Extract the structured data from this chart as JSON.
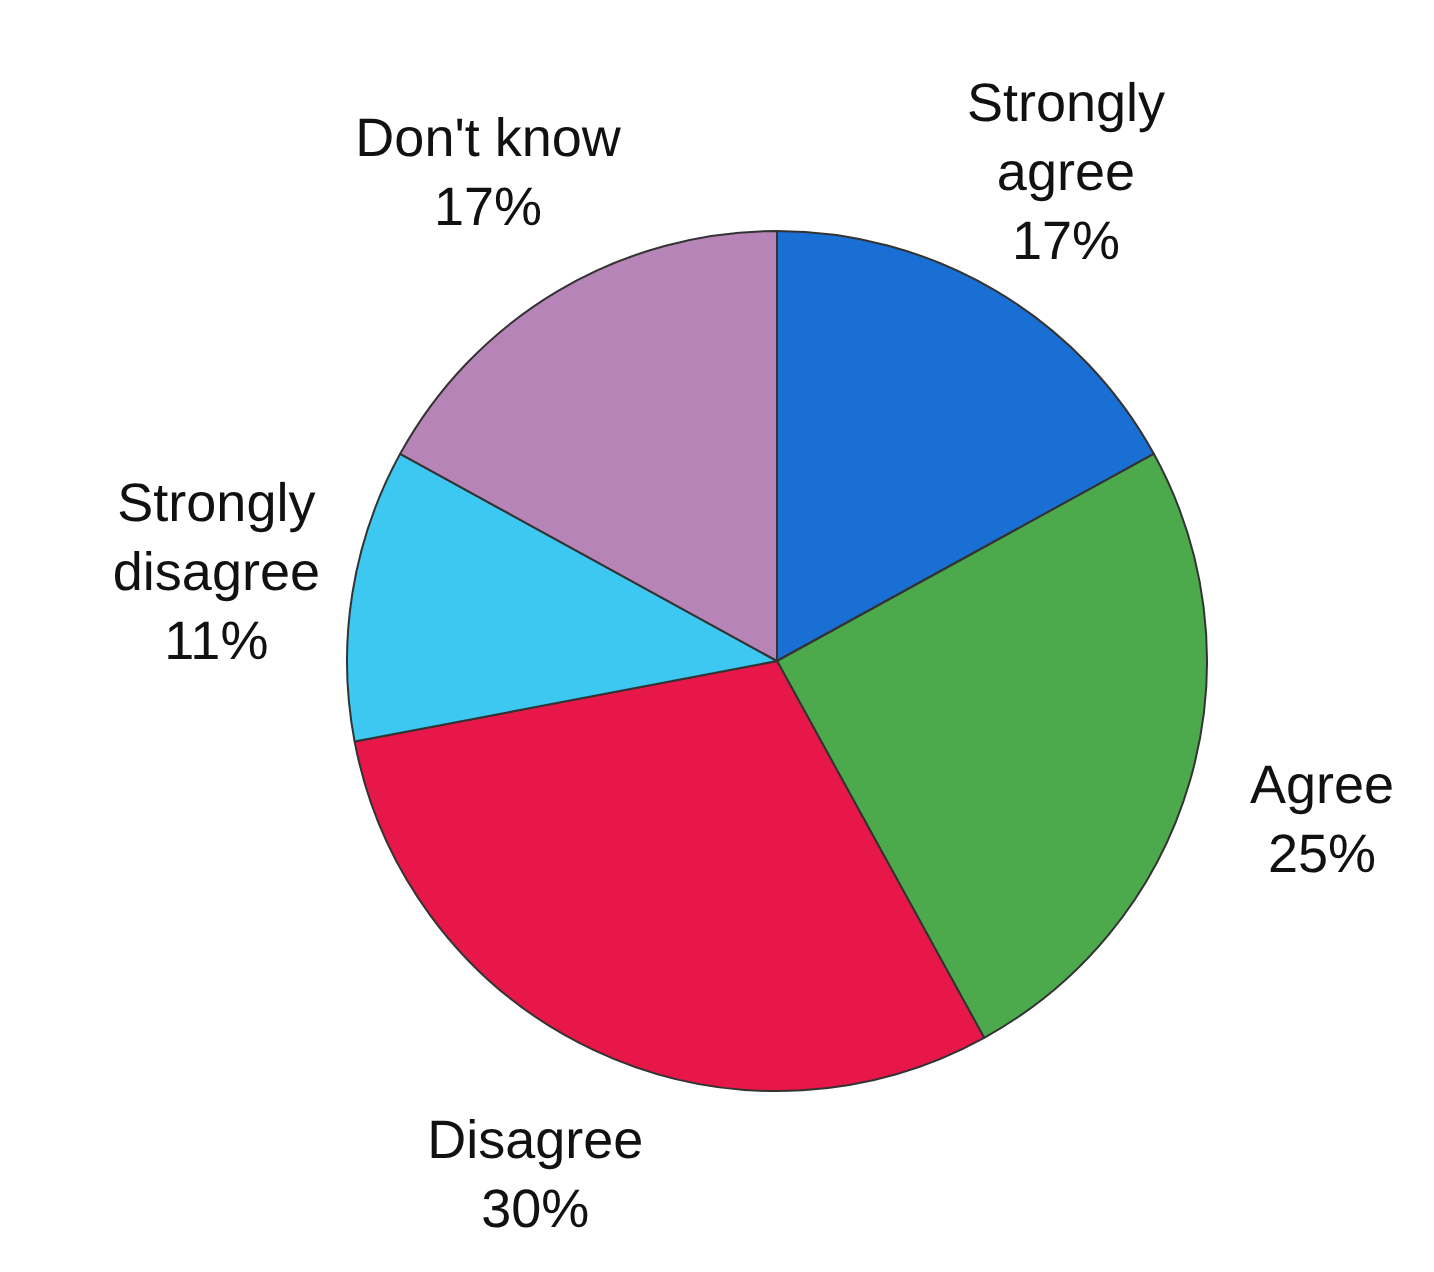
{
  "chart_data": {
    "type": "pie",
    "categories": [
      "Strongly\nagree",
      "Agree",
      "Disagree",
      "Strongly\ndisagree",
      "Don't know"
    ],
    "values": [
      17,
      25,
      30,
      11,
      17
    ],
    "colors": [
      "#1a6fd4",
      "#4caa4c",
      "#e8174a",
      "#3cc8f0",
      "#b784b7"
    ],
    "value_labels": [
      "17%",
      "25%",
      "30%",
      "11%",
      "17%"
    ]
  }
}
